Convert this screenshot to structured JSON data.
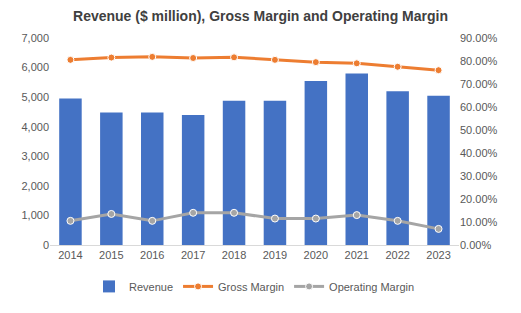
{
  "chart_data": {
    "type": "bar",
    "title": "Revenue ($ million), Gross Margin and Operating Margin",
    "categories": [
      "2014",
      "2015",
      "2016",
      "2017",
      "2018",
      "2019",
      "2020",
      "2021",
      "2022",
      "2023"
    ],
    "series": [
      {
        "name": "Revenue",
        "type": "bar",
        "color": "#4472c4",
        "values": [
          4950,
          4480,
          4480,
          4400,
          4880,
          4880,
          5550,
          5800,
          5200,
          5050
        ]
      },
      {
        "name": "Gross Margin",
        "type": "line",
        "axis": "y2",
        "color": "#ed7d31",
        "marker": "circle",
        "line_style": "solid",
        "values": [
          80.5,
          81.5,
          81.8,
          81.3,
          81.6,
          80.5,
          79.5,
          79.0,
          77.5,
          76.0
        ]
      },
      {
        "name": "Operating Margin",
        "type": "line",
        "axis": "y2",
        "color": "#a5a5a5",
        "marker": "circle",
        "line_style": "solid",
        "values": [
          10.5,
          13.5,
          10.5,
          14.0,
          14.0,
          11.5,
          11.5,
          13.0,
          10.5,
          7.0
        ]
      }
    ],
    "ylim": [
      0,
      7000
    ],
    "yticks": [
      0,
      {
        "value": 1000,
        "label": "1,000"
      },
      {
        "value": 2000,
        "label": "2,000"
      },
      {
        "value": 3000,
        "label": "3,000"
      },
      {
        "value": 4000,
        "label": "4,000"
      },
      {
        "value": 5000,
        "label": "5,000"
      },
      {
        "value": 6000,
        "label": "6,000"
      },
      {
        "value": 7000,
        "label": "7,000"
      }
    ],
    "y2lim": [
      0,
      90
    ],
    "y2ticks": [
      {
        "value": 0,
        "label": "0.00%"
      },
      {
        "value": 10,
        "label": "10.00%"
      },
      {
        "value": 20,
        "label": "20.00%"
      },
      {
        "value": 30,
        "label": "30.00%"
      },
      {
        "value": 40,
        "label": "40.00%"
      },
      {
        "value": 50,
        "label": "50.00%"
      },
      {
        "value": 60,
        "label": "60.00%"
      },
      {
        "value": 70,
        "label": "70.00%"
      },
      {
        "value": 80,
        "label": "80.00%"
      },
      {
        "value": 90,
        "label": "90.00%"
      }
    ],
    "grid": false,
    "legend": "bottom"
  }
}
